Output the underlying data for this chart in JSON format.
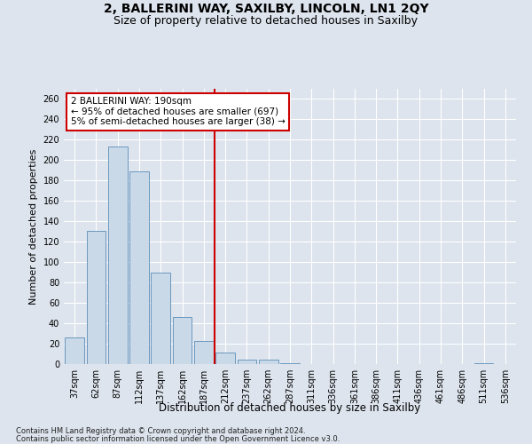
{
  "title": "2, BALLERINI WAY, SAXILBY, LINCOLN, LN1 2QY",
  "subtitle": "Size of property relative to detached houses in Saxilby",
  "xlabel": "Distribution of detached houses by size in Saxilby",
  "ylabel": "Number of detached properties",
  "categories": [
    "37sqm",
    "62sqm",
    "87sqm",
    "112sqm",
    "137sqm",
    "162sqm",
    "187sqm",
    "212sqm",
    "237sqm",
    "262sqm",
    "287sqm",
    "311sqm",
    "336sqm",
    "361sqm",
    "386sqm",
    "411sqm",
    "436sqm",
    "461sqm",
    "486sqm",
    "511sqm",
    "536sqm"
  ],
  "values": [
    26,
    131,
    213,
    189,
    90,
    46,
    23,
    11,
    4,
    4,
    1,
    0,
    0,
    0,
    0,
    0,
    0,
    0,
    0,
    1,
    0
  ],
  "bar_color": "#c9d9e8",
  "bar_edge_color": "#5b8db8",
  "property_line_x": 6.5,
  "annotation_text_line1": "2 BALLERINI WAY: 190sqm",
  "annotation_text_line2": "← 95% of detached houses are smaller (697)",
  "annotation_text_line3": "5% of semi-detached houses are larger (38) →",
  "annotation_box_color": "#ffffff",
  "annotation_box_edge_color": "#cc0000",
  "vline_color": "#cc0000",
  "ylim": [
    0,
    270
  ],
  "yticks": [
    0,
    20,
    40,
    60,
    80,
    100,
    120,
    140,
    160,
    180,
    200,
    220,
    240,
    260
  ],
  "footnote1": "Contains HM Land Registry data © Crown copyright and database right 2024.",
  "footnote2": "Contains public sector information licensed under the Open Government Licence v3.0.",
  "background_color": "#dde4ed",
  "plot_bg_color": "#dde4ed",
  "title_fontsize": 10,
  "subtitle_fontsize": 9,
  "tick_fontsize": 7,
  "ylabel_fontsize": 8,
  "xlabel_fontsize": 8.5,
  "footnote_fontsize": 6,
  "annotation_fontsize": 7.5
}
